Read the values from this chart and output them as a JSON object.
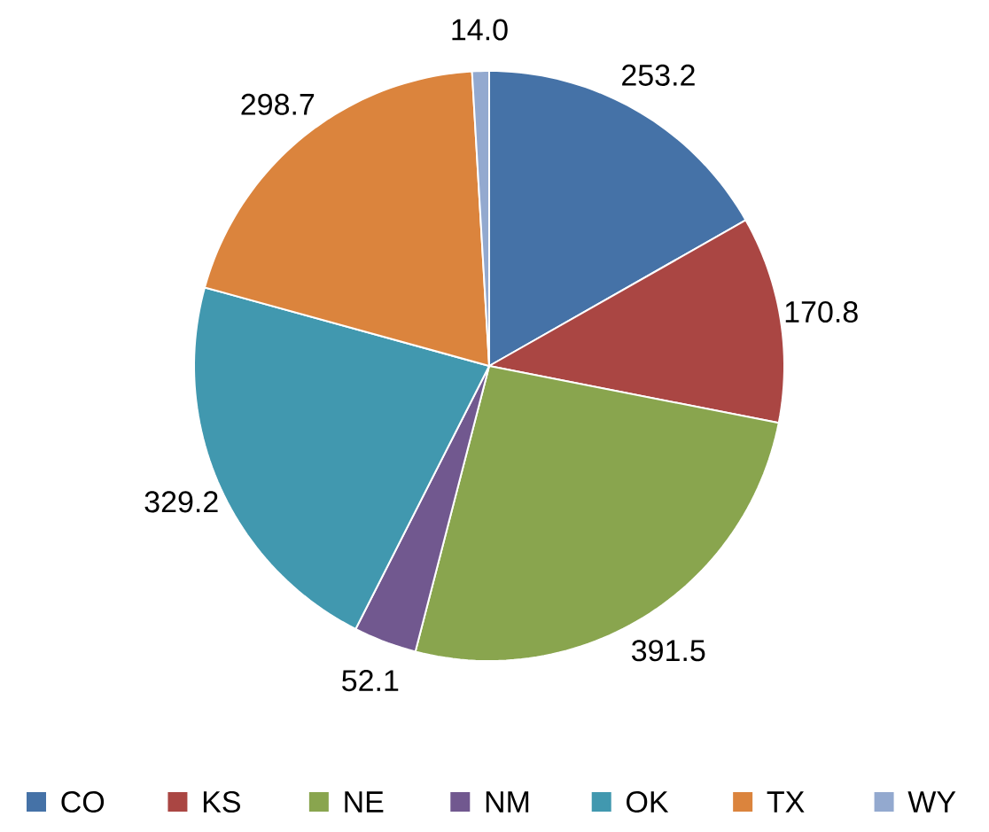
{
  "chart_data": {
    "type": "pie",
    "categories": [
      "CO",
      "KS",
      "NE",
      "NM",
      "OK",
      "TX",
      "WY"
    ],
    "values": [
      253.2,
      170.8,
      391.5,
      52.1,
      329.2,
      298.7,
      14.0
    ],
    "colors": [
      "#4572a7",
      "#aa4643",
      "#89a54e",
      "#71588f",
      "#4198af",
      "#db843d",
      "#93a9cf"
    ],
    "value_labels": [
      "253.2",
      "170.8",
      "391.5",
      "52.1",
      "329.2",
      "298.7",
      "14.0"
    ],
    "legend": "bottom"
  }
}
